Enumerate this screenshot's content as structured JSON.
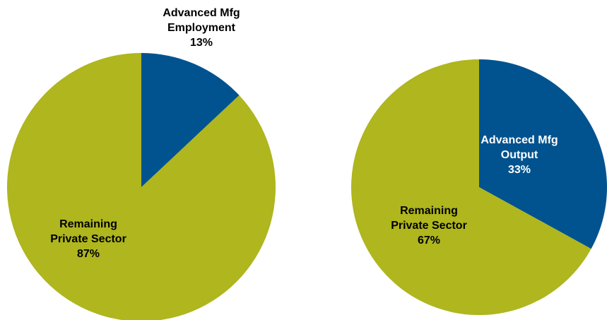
{
  "chart_data": [
    {
      "type": "pie",
      "categories": [
        "Advanced Mfg Employment",
        "Remaining Private Sector"
      ],
      "values": [
        13,
        87
      ],
      "value_labels": [
        "13%",
        "87%"
      ],
      "colors": [
        "#00538f",
        "#afb61e"
      ]
    },
    {
      "type": "pie",
      "categories": [
        "Advanced Mfg Output",
        "Remaining Private Sector"
      ],
      "values": [
        33,
        67
      ],
      "value_labels": [
        "33%",
        "67%"
      ],
      "colors": [
        "#00538f",
        "#afb61e"
      ]
    }
  ]
}
